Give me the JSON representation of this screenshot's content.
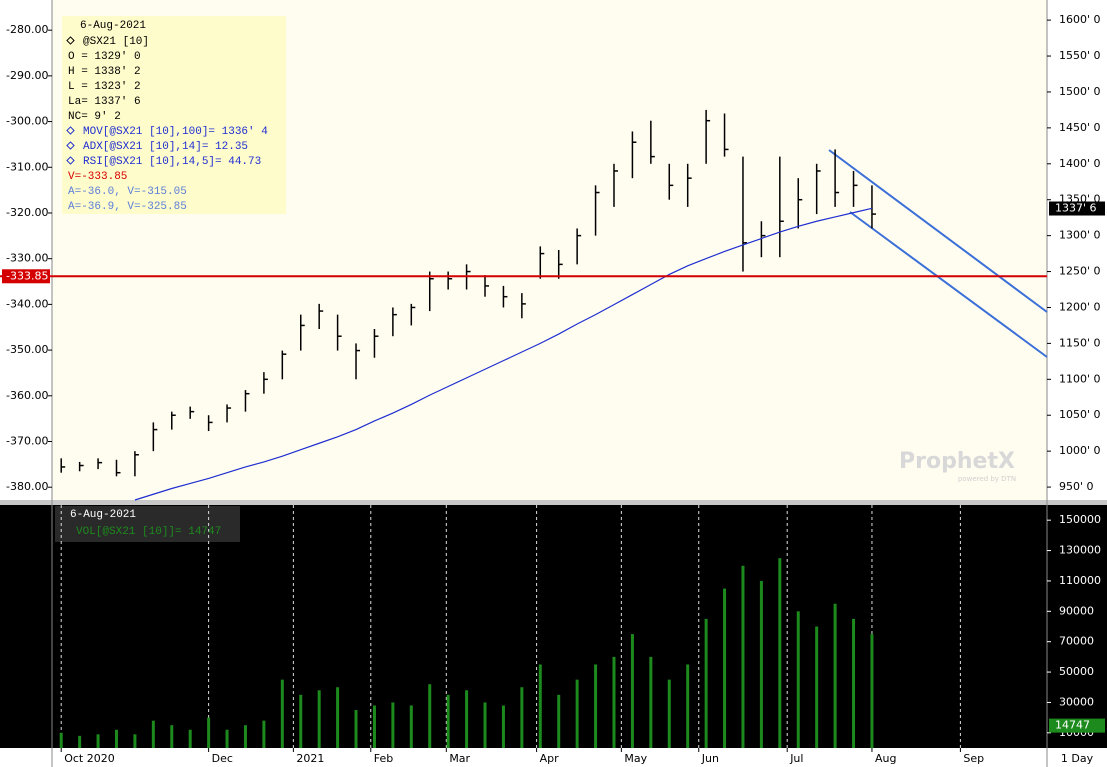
{
  "chart_data": [
    {
      "type": "ohlc",
      "xlim": [
        -0.5,
        53.5
      ],
      "ylim": [
        932,
        1628
      ],
      "yticks": [
        {
          "value": 950,
          "label": "950' 0"
        },
        {
          "value": 1000,
          "label": "1000' 0"
        },
        {
          "value": 1050,
          "label": "1050' 0"
        },
        {
          "value": 1100,
          "label": "1100' 0"
        },
        {
          "value": 1150,
          "label": "1150' 0"
        },
        {
          "value": 1200,
          "label": "1200' 0"
        },
        {
          "value": 1250,
          "label": "1250' 0"
        },
        {
          "value": 1300,
          "label": "1300' 0"
        },
        {
          "value": 1350,
          "label": "1350' 0"
        },
        {
          "value": 1400,
          "label": "1400' 0"
        },
        {
          "value": 1450,
          "label": "1450' 0"
        },
        {
          "value": 1500,
          "label": "1500' 0"
        },
        {
          "value": 1550,
          "label": "1550' 0"
        },
        {
          "value": 1600,
          "label": "1600' 0"
        }
      ],
      "y2lim": [
        -382.8,
        -273.4
      ],
      "y2ticks": [
        {
          "value": -280,
          "label": "-280.00"
        },
        {
          "value": -290,
          "label": "-290.00"
        },
        {
          "value": -300,
          "label": "-300.00"
        },
        {
          "value": -310,
          "label": "-310.00"
        },
        {
          "value": -320,
          "label": "-320.00"
        },
        {
          "value": -330,
          "label": "-330.00"
        },
        {
          "value": -340,
          "label": "-340.00"
        },
        {
          "value": -350,
          "label": "-350.00"
        },
        {
          "value": -360,
          "label": "-360.00"
        },
        {
          "value": -370,
          "label": "-370.00"
        },
        {
          "value": -380,
          "label": "-380.00"
        }
      ],
      "series": [
        {
          "color": "#000000",
          "high": [
            990,
            985,
            990,
            988,
            1000,
            1040,
            1055,
            1062,
            1050,
            1065,
            1085,
            1110,
            1140,
            1190,
            1205,
            1190,
            1150,
            1170,
            1200,
            1205,
            1250,
            1250,
            1260,
            1245,
            1230,
            1220,
            1285,
            1280,
            1310,
            1370,
            1400,
            1445,
            1460,
            1400,
            1400,
            1475,
            1470,
            1410,
            1320,
            1410,
            1380,
            1400,
            1420,
            1390,
            1370
          ],
          "low": [
            970,
            972,
            975,
            965,
            965,
            1000,
            1030,
            1045,
            1028,
            1040,
            1055,
            1080,
            1100,
            1140,
            1170,
            1140,
            1100,
            1130,
            1160,
            1175,
            1195,
            1225,
            1225,
            1215,
            1200,
            1185,
            1240,
            1240,
            1260,
            1300,
            1340,
            1380,
            1400,
            1350,
            1340,
            1400,
            1410,
            1250,
            1270,
            1270,
            1310,
            1330,
            1340,
            1340,
            1310
          ],
          "close": [
            978,
            980,
            984,
            970,
            995,
            1030,
            1050,
            1055,
            1040,
            1060,
            1080,
            1100,
            1135,
            1175,
            1195,
            1160,
            1140,
            1160,
            1190,
            1200,
            1240,
            1240,
            1250,
            1230,
            1215,
            1205,
            1275,
            1260,
            1300,
            1360,
            1390,
            1430,
            1410,
            1370,
            1380,
            1460,
            1420,
            1290,
            1300,
            1320,
            1350,
            1390,
            1360,
            1370,
            1330
          ]
        },
        {
          "color": "#1f2fd0",
          "values": [
            null,
            null,
            null,
            null,
            932,
            940,
            948,
            955,
            962,
            970,
            978,
            985,
            993,
            1002,
            1011,
            1020,
            1030,
            1042,
            1053,
            1065,
            1078,
            1090,
            1102,
            1114,
            1126,
            1138,
            1150,
            1163,
            1177,
            1190,
            1204,
            1218,
            1232,
            1246,
            1258,
            1268,
            1278,
            1287,
            1296,
            1305,
            1313,
            1320,
            1326,
            1332,
            1338
          ]
        }
      ],
      "last_price": {
        "value": 1337.75,
        "label": "1337' 6"
      },
      "reference_line": {
        "axis": "y2",
        "value": -333.85,
        "color": "#d40000"
      },
      "info_box": {
        "title": "6-Aug-2021",
        "lines": [
          {
            "text": "@SX21 [10]",
            "color": "#000000"
          },
          {
            "text": "O = 1329' 0",
            "color": "#000000"
          },
          {
            "text": "H = 1338' 2",
            "color": "#000000"
          },
          {
            "text": "L = 1323' 2",
            "color": "#000000"
          },
          {
            "text": "La= 1337' 6",
            "color": "#000000"
          },
          {
            "text": "NC= 9' 2",
            "color": "#000000"
          },
          {
            "text": "MOV[@SX21 [10],100]= 1336' 4",
            "color": "#1f2fd0"
          },
          {
            "text": "ADX[@SX21 [10],14]= 12.35",
            "color": "#1f2fd0"
          },
          {
            "text": "RSI[@SX21 [10],14,5]= 44.73",
            "color": "#1f2fd0"
          },
          {
            "text": "V=-333.85",
            "color": "#d40000"
          },
          {
            "text": "A=-36.0, V=-315.05",
            "color": "#5b7fd9"
          },
          {
            "text": "A=-36.9, V=-325.85",
            "color": "#5b7fd9"
          }
        ]
      }
    },
    {
      "type": "bar",
      "xlim": [
        -0.5,
        53.5
      ],
      "ylim": [
        0,
        160000
      ],
      "yticks": [
        10000,
        30000,
        50000,
        70000,
        90000,
        110000,
        130000,
        150000
      ],
      "xticks": [
        {
          "value": 0,
          "label": "Oct 2020"
        },
        {
          "value": 8,
          "label": "Dec"
        },
        {
          "value": 12.6,
          "label": "2021"
        },
        {
          "value": 16.8,
          "label": "Feb"
        },
        {
          "value": 20.9,
          "label": "Mar"
        },
        {
          "value": 25.8,
          "label": "Apr"
        },
        {
          "value": 30.4,
          "label": "May"
        },
        {
          "value": 34.6,
          "label": "Jun"
        },
        {
          "value": 39.4,
          "label": "Jul"
        },
        {
          "value": 44,
          "label": "Aug"
        },
        {
          "value": 48.8,
          "label": "Sep"
        }
      ],
      "color": "#1d8a1d",
      "values": [
        10000,
        8000,
        9000,
        12000,
        9000,
        18000,
        15000,
        12000,
        20000,
        12000,
        15000,
        18000,
        45000,
        35000,
        38000,
        40000,
        25000,
        28000,
        30000,
        28000,
        42000,
        35000,
        38000,
        30000,
        28000,
        40000,
        55000,
        35000,
        45000,
        55000,
        60000,
        75000,
        60000,
        45000,
        55000,
        85000,
        105000,
        120000,
        110000,
        125000,
        90000,
        80000,
        95000,
        85000,
        75000
      ],
      "last_value": 14747,
      "info_box": {
        "title": "6-Aug-2021",
        "line": "VOL[@SX21 [10]]= 14747"
      }
    }
  ],
  "interval": "1 Day",
  "watermark": {
    "title": "ProphetX",
    "subtitle": "powered by DTN"
  }
}
